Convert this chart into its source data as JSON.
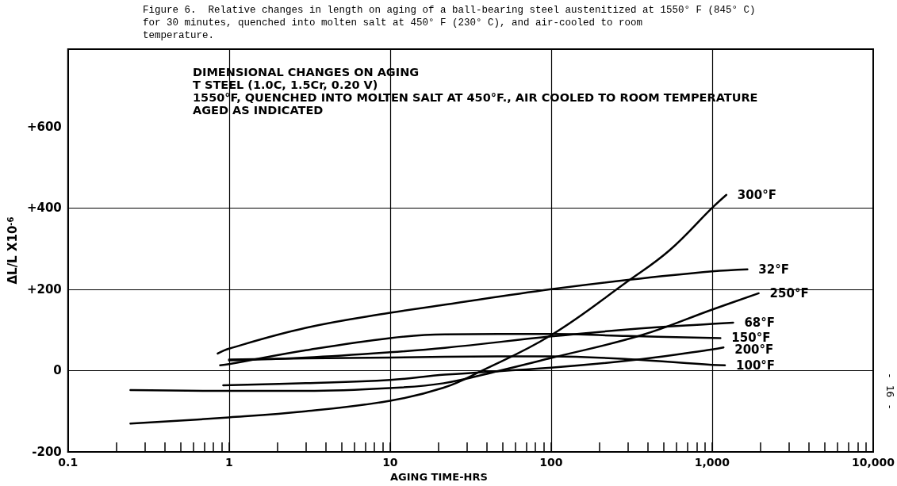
{
  "chart_data": {
    "type": "line",
    "title": "Figure 6.  Relative changes in length on aging of a ball-bearing steel austenitized at 1550° F (845° C)\nfor 30 minutes, quenched into molten salt at 450° F (230° C), and air-cooled to room\ntemperature.",
    "subtitle": "DIMENSIONAL CHANGES ON AGING\nT STEEL (1.0C, 1.5Cr, 0.20 V)\n1550°F, QUENCHED INTO MOLTEN SALT AT 450°F., AIR COOLED TO ROOM TEMPERATURE\nAGED AS INDICATED",
    "xlabel": "AGING TIME-HRS",
    "ylabel": "ΔL/L X10$^{-6}$",
    "annotations": [
      "- 16 -"
    ],
    "log": "x",
    "xlim": [
      0.1,
      10000
    ],
    "xticks": [
      {
        "value": 0.1,
        "label": "0.1"
      },
      {
        "value": 0.2,
        "label": null
      },
      {
        "value": 0.3,
        "label": null
      },
      {
        "value": 0.4,
        "label": null
      },
      {
        "value": 0.5,
        "label": null
      },
      {
        "value": 0.6,
        "label": null
      },
      {
        "value": 0.7,
        "label": null
      },
      {
        "value": 0.8,
        "label": null
      },
      {
        "value": 0.9,
        "label": null
      },
      1,
      {
        "value": 2,
        "label": null
      },
      {
        "value": 3,
        "label": null
      },
      {
        "value": 4,
        "label": null
      },
      {
        "value": 5,
        "label": null
      },
      {
        "value": 6,
        "label": null
      },
      {
        "value": 7,
        "label": null
      },
      {
        "value": 8,
        "label": null
      },
      {
        "value": 9,
        "label": null
      },
      10,
      {
        "value": 20,
        "label": null
      },
      {
        "value": 30,
        "label": null
      },
      {
        "value": 40,
        "label": null
      },
      {
        "value": 50,
        "label": null
      },
      {
        "value": 60,
        "label": null
      },
      {
        "value": 70,
        "label": null
      },
      {
        "value": 80,
        "label": null
      },
      {
        "value": 90,
        "label": null
      },
      100,
      {
        "value": 200,
        "label": null
      },
      {
        "value": 300,
        "label": null
      },
      {
        "value": 400,
        "label": null
      },
      {
        "value": 500,
        "label": null
      },
      {
        "value": 600,
        "label": null
      },
      {
        "value": 700,
        "label": null
      },
      {
        "value": 800,
        "label": null
      },
      {
        "value": 900,
        "label": null
      },
      {
        "value": 1000,
        "label": "1,000"
      },
      {
        "value": 2000,
        "label": null
      },
      {
        "value": 3000,
        "label": null
      },
      {
        "value": 4000,
        "label": null
      },
      {
        "value": 5000,
        "label": null
      },
      {
        "value": 6000,
        "label": null
      },
      {
        "value": 7000,
        "label": null
      },
      {
        "value": 8000,
        "label": null
      },
      {
        "value": 9000,
        "label": null
      },
      {
        "value": 10000,
        "label": "10,000"
      }
    ],
    "ylim": [
      -200,
      790
    ],
    "yticks": [
      -200,
      0,
      {
        "value": 200,
        "label": "+200"
      },
      {
        "value": 400,
        "label": "+400"
      },
      {
        "value": 600,
        "label": "+600"
      }
    ],
    "grid": true,
    "legend": false,
    "marker": "none",
    "line_style": "solid",
    "series": [
      {
        "name": "300°F",
        "color": "#000000",
        "x": [
          0.244,
          1,
          3,
          10,
          21.5,
          36,
          100,
          298,
          545,
          1000,
          1225
        ],
        "values": [
          -130,
          -115,
          -100,
          -74,
          -42,
          -3,
          87,
          219,
          296,
          400,
          432
        ]
      },
      {
        "name": "32°F",
        "color": "#000000",
        "x": [
          0.85,
          1,
          3,
          10,
          21.9,
          100,
          300,
          1000,
          1655
        ],
        "values": [
          42,
          54,
          105,
          142,
          162,
          200,
          223,
          244,
          249
        ]
      },
      {
        "name": "250°F",
        "color": "#000000",
        "x": [
          0.244,
          1,
          3,
          10,
          21.5,
          48,
          100,
          364,
          1000,
          1945
        ],
        "values": [
          -48,
          -50,
          -50,
          -43,
          -31,
          0,
          31,
          87,
          150,
          190
        ]
      },
      {
        "name": "68°F",
        "color": "#000000",
        "x": [
          1,
          3,
          10,
          21.9,
          100,
          300,
          1000,
          1350
        ],
        "values": [
          25,
          32,
          45,
          56,
          84,
          101,
          115,
          118
        ]
      },
      {
        "name": "150°F",
        "color": "#000000",
        "x": [
          0.88,
          1,
          3,
          10,
          21.9,
          100,
          300,
          1125
        ],
        "values": [
          13,
          16,
          50,
          80,
          89,
          90,
          85,
          80
        ]
      },
      {
        "name": "200°F",
        "color": "#000000",
        "x": [
          0.92,
          3,
          10,
          21.9,
          100,
          364,
          1000,
          1176
        ],
        "values": [
          -36,
          -31,
          -23,
          -10,
          7,
          28,
          52,
          57
        ]
      },
      {
        "name": "100°F",
        "color": "#000000",
        "x": [
          1,
          3,
          10,
          21.9,
          100,
          300,
          1000,
          1200
        ],
        "values": [
          27,
          30,
          32,
          34,
          35,
          28,
          14,
          13
        ]
      }
    ]
  }
}
